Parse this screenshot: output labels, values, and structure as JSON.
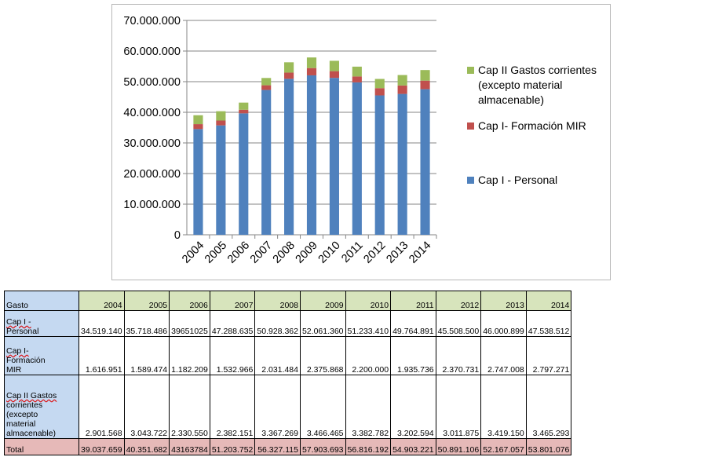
{
  "chart_data": {
    "type": "bar",
    "stacked": true,
    "categories": [
      "2004",
      "2005",
      "2006",
      "2007",
      "2008",
      "2009",
      "2010",
      "2011",
      "2012",
      "2013",
      "2014"
    ],
    "series": [
      {
        "name": "Cap I - Personal",
        "color": "#4f81bd",
        "values": [
          34519140,
          35718486,
          39651025,
          47288635,
          50928362,
          52061360,
          51233410,
          49764891,
          45508500,
          46000899,
          47538512
        ]
      },
      {
        "name": "Cap I- Formación MIR",
        "color": "#c0504d",
        "values": [
          1616951,
          1589474,
          1182209,
          1532966,
          2031484,
          2375868,
          2200000,
          1935736,
          2370731,
          2747008,
          2797271
        ]
      },
      {
        "name": "Cap II Gastos corrientes (excepto material almacenable)",
        "color": "#9bbb59",
        "legend_lines": [
          "Cap II Gastos corrientes",
          "(excepto material",
          "almacenable)"
        ],
        "values": [
          2901568,
          3043722,
          2330550,
          2382151,
          3367269,
          3466465,
          3382782,
          3202594,
          3011875,
          3419150,
          3465293
        ]
      }
    ],
    "ylim": [
      0,
      70000000
    ],
    "yticks": [
      0,
      10000000,
      20000000,
      30000000,
      40000000,
      50000000,
      60000000,
      70000000
    ],
    "ytick_labels": [
      "0",
      "10.000.000",
      "20.000.000",
      "30.000.000",
      "40.000.000",
      "50.000.000",
      "60.000.000",
      "70.000.000"
    ],
    "legend_position": "right",
    "grid": true
  },
  "table": {
    "header_label": "Gasto",
    "years": [
      "2004",
      "2005",
      "2006",
      "2007",
      "2008",
      "2009",
      "2010",
      "2011",
      "2012",
      "2013",
      "2014"
    ],
    "rows": [
      {
        "label_lines": [
          "Cap I -",
          "Personal"
        ],
        "values": [
          "34.519.140",
          "35.718.486",
          "39651025",
          "47.288.635",
          "50.928.362",
          "52.061.360",
          "51.233.410",
          "49.764.891",
          "45.508.500",
          "46.000.899",
          "47.538.512"
        ]
      },
      {
        "label_lines": [
          "Cap I-",
          "Formación",
          "MIR"
        ],
        "values": [
          "1.616.951",
          "1.589.474",
          "1.182.209",
          "1.532.966",
          "2.031.484",
          "2.375.868",
          "2.200.000",
          "1.935.736",
          "2.370.731",
          "2.747.008",
          "2.797.271"
        ]
      },
      {
        "label_lines": [
          "Cap II Gastos",
          "corrientes",
          "(excepto",
          "material",
          "almacenable)"
        ],
        "values": [
          "2.901.568",
          "3.043.722",
          "2.330.550",
          "2.382.151",
          "3.367.269",
          "3.466.465",
          "3.382.782",
          "3.202.594",
          "3.011.875",
          "3.419.150",
          "3.465.293"
        ]
      }
    ],
    "total_label": "Total",
    "total_values": [
      "39.037.659",
      "40.351.682",
      "43163784",
      "51.203.752",
      "56.327.115",
      "57.903.693",
      "56.816.192",
      "54.903.221",
      "50.891.106",
      "52.167.057",
      "53.801.076"
    ]
  }
}
